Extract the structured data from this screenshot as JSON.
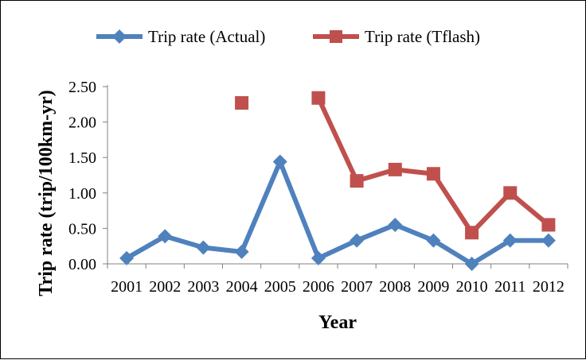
{
  "chart_data": {
    "type": "line",
    "title": "",
    "xlabel": "Year",
    "ylabel": "Trip rate (trip/100km-yr)",
    "categories": [
      "2001",
      "2002",
      "2003",
      "2004",
      "2005",
      "2006",
      "2007",
      "2008",
      "2009",
      "2010",
      "2011",
      "2012"
    ],
    "ylim": [
      0,
      2.5
    ],
    "yticks": [
      "0.00",
      "0.50",
      "1.00",
      "1.50",
      "2.00",
      "2.50"
    ],
    "grid": false,
    "legend_position": "top",
    "series": [
      {
        "name": "Trip rate (Actual)",
        "color": "#4F81BD",
        "marker": "diamond",
        "values": [
          0.08,
          0.39,
          0.23,
          0.17,
          1.44,
          0.08,
          0.33,
          0.55,
          0.33,
          0.0,
          0.33,
          0.33
        ]
      },
      {
        "name": "Trip rate (Tflash)",
        "color": "#C0504D",
        "marker": "square",
        "values": [
          null,
          null,
          null,
          2.27,
          null,
          2.34,
          1.17,
          1.33,
          1.27,
          0.44,
          1.0,
          0.55
        ]
      }
    ]
  }
}
